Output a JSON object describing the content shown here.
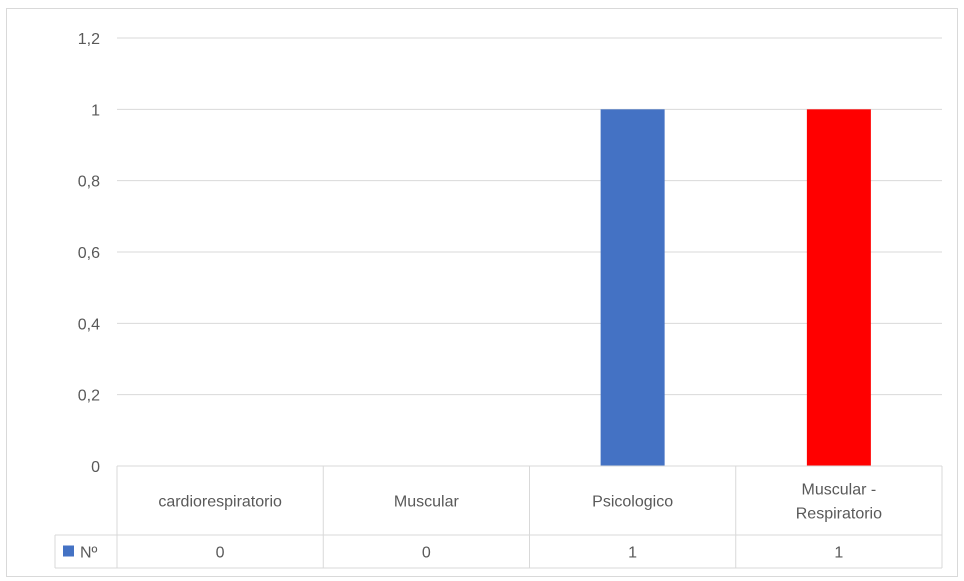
{
  "chart_data": {
    "type": "bar",
    "categories": [
      [
        "cardiorespiratorio"
      ],
      [
        "Muscular"
      ],
      [
        "Psicologico"
      ],
      [
        "Muscular -",
        "Respiratorio"
      ]
    ],
    "series": [
      {
        "name": "Nº",
        "values": [
          0,
          0,
          1,
          1
        ],
        "bar_colors": [
          "#4472c4",
          "#4472c4",
          "#4472c4",
          "#ff0000"
        ],
        "legend_color": "#4472c4"
      }
    ],
    "yticks": [
      "0",
      "0,2",
      "0,4",
      "0,6",
      "0,8",
      "1",
      "1,2"
    ],
    "ylim": [
      0,
      1.2
    ],
    "data_table": true,
    "grid": true,
    "title": "",
    "xlabel": "",
    "ylabel": ""
  }
}
